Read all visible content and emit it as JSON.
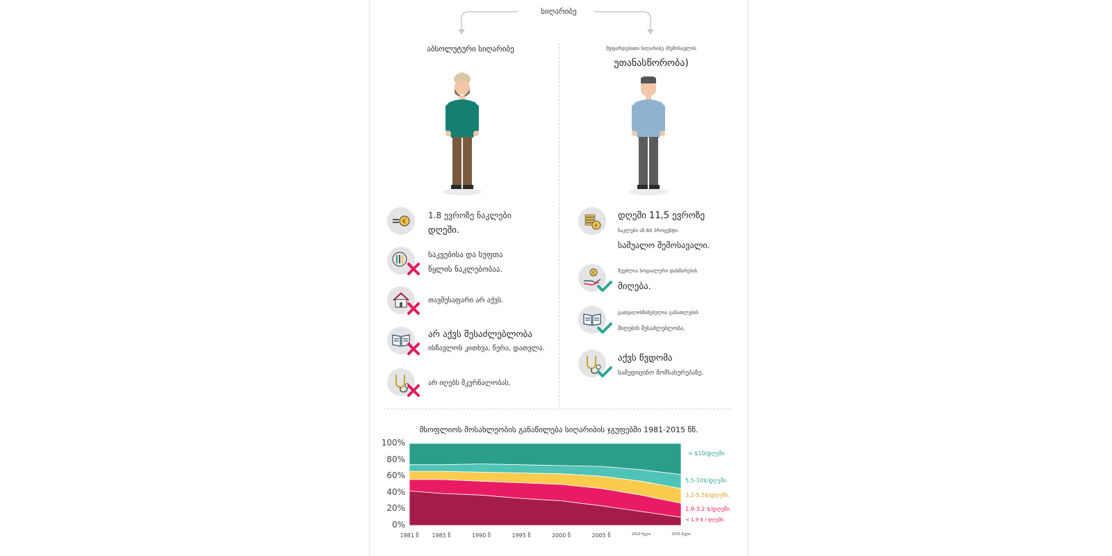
{
  "top_title": "სიღარიბე",
  "left": {
    "title": "აბსოლუტური სიღარიბე",
    "items": [
      {
        "line1": "1.8 ევროზე ნაკლები",
        "line2": "დღეში.",
        "icon": "euro-coins-icon",
        "mark": "none"
      },
      {
        "line1": "საკვებისა და სუფთა",
        "line2": "წყლის ნაკლებობაა.",
        "icon": "food-water-icon",
        "mark": "cross"
      },
      {
        "line1": "თავშესაფარი არ აქვს.",
        "line2": "",
        "icon": "house-icon",
        "mark": "cross"
      },
      {
        "line1": "არ აქვს შესაძლებლობა",
        "line2": "ისწავლოს კითხვა, წერა, დათვლა.",
        "icon": "book-icon",
        "mark": "cross"
      },
      {
        "line1": "არ იღებს მკურნალობას.",
        "line2": "",
        "icon": "stethoscope-icon",
        "mark": "cross"
      }
    ]
  },
  "right": {
    "title_small": "შეფარდებითი სიღარიბე (შემოსავლის",
    "title_big": "უთანასწორობა)",
    "items": [
      {
        "line1": "დღეში 11,5 ევროზე",
        "line2": "ნაკლები ან 60 პროცენტი.",
        "line3": "საშუალო შემოსავალი.",
        "icon": "coin-stack-icon",
        "mark": "none"
      },
      {
        "line1": "შეუძლია სოციალური დახმარების",
        "line2": "მიღება.",
        "icon": "hand-coin-icon",
        "mark": "check"
      },
      {
        "line1": "გათვალისწინებულია განათლების",
        "line2": "მიღების შესაძლებლობა.",
        "icon": "book-icon",
        "mark": "check"
      },
      {
        "line1": "აქვს წვდომა",
        "line2": "სამედიცინო მომსახურებაზე.",
        "icon": "stethoscope-icon",
        "mark": "check"
      }
    ]
  },
  "chart_data": {
    "type": "area",
    "title": "მსოფლიოს მოსახლეობის განაწილება სიღარიბის ჯგუფებში 1981-2015 წწ.",
    "x": [
      1981,
      1985,
      1990,
      1995,
      2000,
      2005,
      2010,
      2015
    ],
    "x_labels": [
      "1981 წ",
      "1985 წ",
      "1990 წ",
      "1995 წ",
      "2000 წ",
      "2005 წ",
      "2010 წელი",
      "2015 წელი"
    ],
    "y_ticks": [
      "100%",
      "80%",
      "60%",
      "40%",
      "20%",
      "0%"
    ],
    "ylim": [
      0,
      100
    ],
    "stacked": true,
    "colors": [
      "#a61c48",
      "#ea1b65",
      "#fbcb4d",
      "#4fc3b5",
      "#2b9e8b"
    ],
    "series": [
      {
        "name": "< 1,9 $ / დღეში.",
        "values": [
          42,
          39,
          37,
          33,
          30,
          24,
          17,
          10
        ],
        "color": "#a61c48"
      },
      {
        "name": "1.9-3.2 $/დღეში.",
        "values": [
          14,
          17,
          17,
          19,
          20,
          21,
          20,
          17
        ],
        "color": "#ea1b65"
      },
      {
        "name": "3,2-5,5$/დღეში.",
        "values": [
          10,
          10,
          11,
          12,
          13,
          15,
          17,
          18
        ],
        "color": "#fbcb4d"
      },
      {
        "name": "5,5-10$/დღეში.",
        "values": [
          8,
          8,
          10,
          10,
          10,
          12,
          14,
          17
        ],
        "color": "#4fc3b5"
      },
      {
        "name": "> $10/დღეში",
        "values": [
          26,
          26,
          25,
          26,
          27,
          28,
          32,
          38
        ],
        "color": "#2b9e8b"
      }
    ]
  }
}
